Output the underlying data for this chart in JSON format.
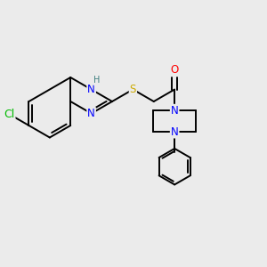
{
  "background_color": "#ebebeb",
  "bond_color": "#000000",
  "atom_colors": {
    "Cl": "#00bb00",
    "H": "#408080",
    "N": "#0000ff",
    "S": "#ccaa00",
    "O": "#ff0000",
    "C": "#000000"
  },
  "bond_width": 1.4,
  "dbo": 0.12,
  "font_size": 8.5,
  "figsize": [
    3.0,
    3.0
  ],
  "dpi": 100
}
